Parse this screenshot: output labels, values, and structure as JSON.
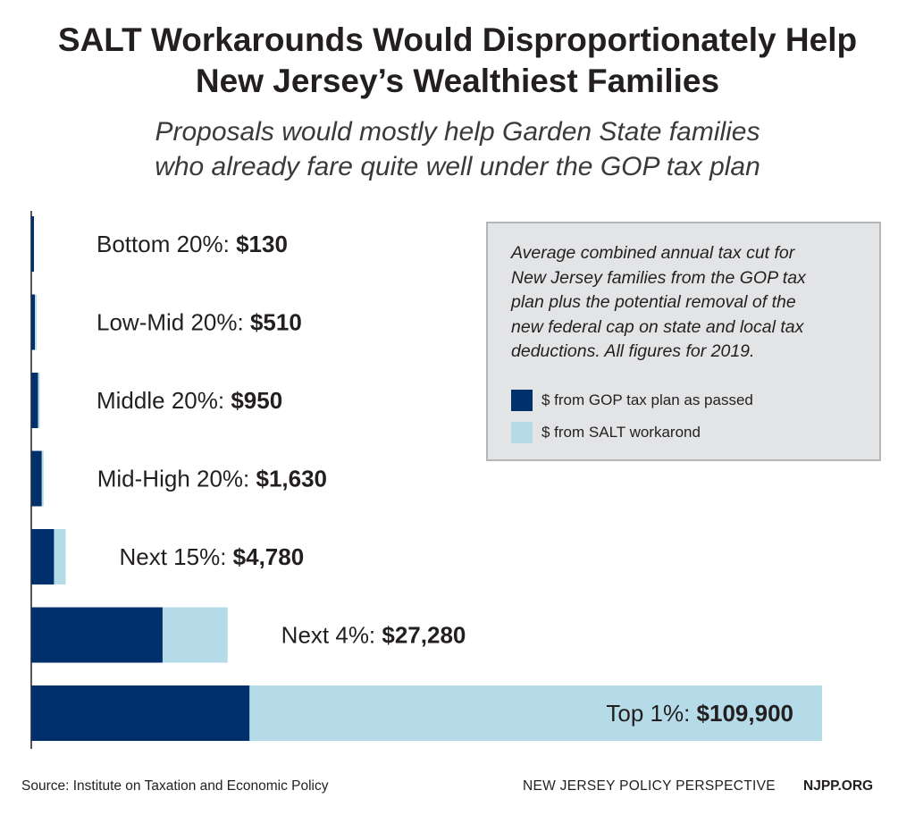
{
  "title_lines": [
    "SALT Workarounds Would Disproportionately Help",
    "New Jersey’s Wealthiest Families"
  ],
  "subtitle_lines": [
    "Proposals would mostly help Garden State families",
    "who already fare quite well under the GOP tax plan"
  ],
  "legend": {
    "note_lines": [
      "Average combined annual tax cut for",
      "New Jersey families from the GOP tax",
      "plan plus the potential removal of the",
      "new federal cap on state and local tax",
      "deductions. All figures for 2019."
    ],
    "gop_label": "$ from GOP tax plan as passed",
    "salt_label": "$ from SALT workarond"
  },
  "footer": {
    "source": "Source: Institute on Taxation and Economic Policy",
    "org": "NEW JERSEY POLICY PERSPECTIVE",
    "site": "NJPP.ORG"
  },
  "colors": {
    "gop": "#00306b",
    "salt": "#b5dbe9",
    "axis": "#231f20"
  },
  "chart_data": {
    "type": "bar",
    "orientation": "horizontal",
    "stacked": true,
    "categories": [
      "Bottom 20%",
      "Low-Mid 20%",
      "Middle 20%",
      "Mid-High 20%",
      "Next 15%",
      "Next 4%",
      "Top 1%"
    ],
    "category_labels": [
      "Bottom 20%: ",
      "Low-Mid 20%: ",
      "Middle 20%: ",
      "Mid-High 20%: ",
      "Next 15%: ",
      "Next 4%: ",
      "Top 1%: "
    ],
    "totals": [
      130,
      510,
      950,
      1630,
      4780,
      27280,
      109900
    ],
    "total_labels": [
      "$130",
      "$510",
      "$950",
      "$1,630",
      "$4,780",
      "$27,280",
      "$109,900"
    ],
    "series": [
      {
        "name": "$ from GOP tax plan as passed",
        "values": [
          130,
          500,
          930,
          1460,
          3160,
          18250,
          30340
        ]
      },
      {
        "name": "$ from SALT workarond",
        "values": [
          0,
          10,
          20,
          170,
          1620,
          9030,
          79560
        ]
      }
    ],
    "xlim": [
      0,
      109900
    ],
    "axis": "none",
    "grid": false,
    "legend_position": "top-right"
  }
}
